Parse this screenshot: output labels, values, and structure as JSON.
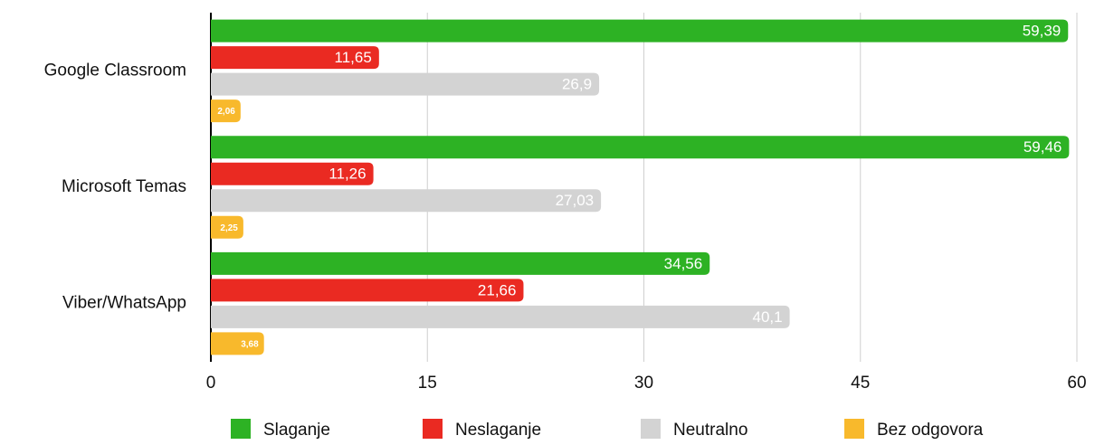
{
  "chart_data": {
    "type": "hbar",
    "categories": [
      "Google Classroom",
      "Microsoft Temas",
      "Viber/WhatsApp"
    ],
    "series": [
      {
        "name": "Slaganje",
        "color": "#2db224",
        "values": [
          59.39,
          59.46,
          34.56
        ],
        "value_labels": [
          "59,39",
          "59,46",
          "34,56"
        ]
      },
      {
        "name": "Neslaganje",
        "color": "#ea2a22",
        "values": [
          11.65,
          11.26,
          21.66
        ],
        "value_labels": [
          "11,65",
          "11,26",
          "21,66"
        ]
      },
      {
        "name": "Neutralno",
        "color": "#d3d3d3",
        "values": [
          26.9,
          27.03,
          40.1
        ],
        "value_labels": [
          "26,9",
          "27,03",
          "40,1"
        ]
      },
      {
        "name": "Bez odgovora",
        "color": "#f8b92c",
        "values": [
          2.06,
          2.25,
          3.68
        ],
        "value_labels": [
          "2,06",
          "2,25",
          "3,68"
        ]
      }
    ],
    "xlim": [
      0,
      60
    ],
    "xticks": [
      0,
      15,
      30,
      45,
      60
    ],
    "grid": true,
    "legend": "bottom"
  }
}
